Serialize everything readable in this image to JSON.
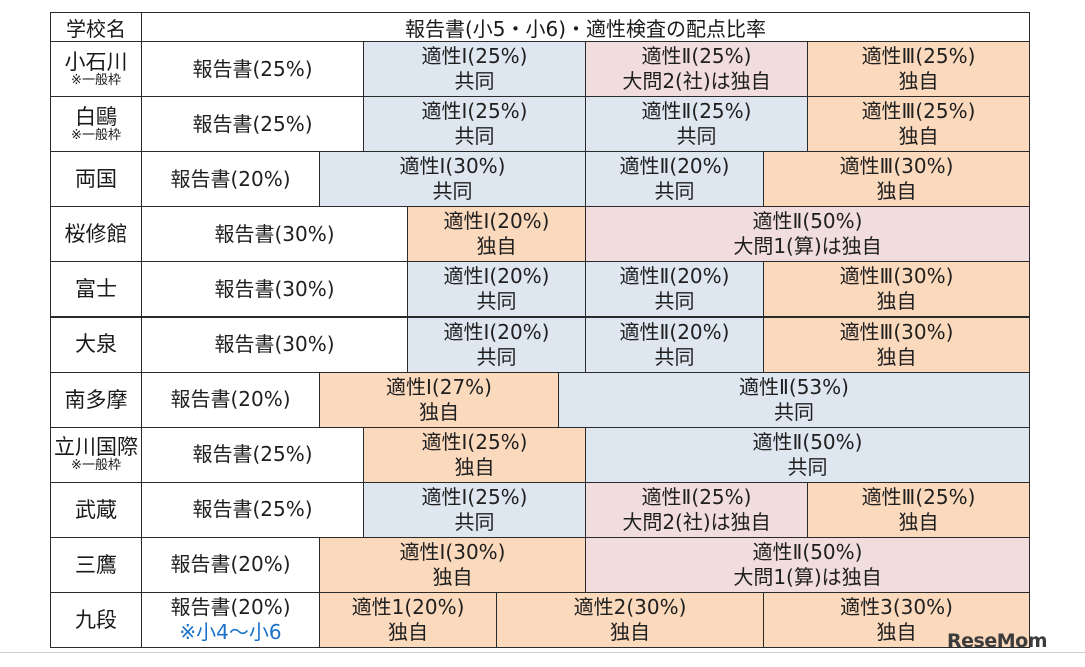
{
  "header": {
    "school_col": "学校名",
    "ratio_col": "報告書(小5・小6)・適性検査の配点比率"
  },
  "palette": {
    "blue": "#dee6f0",
    "orange": "#fbd9bd",
    "pink": "#f1dcde",
    "note_blue": "#1a73c9"
  },
  "rows": [
    {
      "name": "小石川",
      "note": "※一般枠",
      "segments": [
        {
          "pct": 25,
          "l1": "報告書(25%)",
          "l2": "",
          "color": "report"
        },
        {
          "pct": 25,
          "l1": "適性Ⅰ(25%)",
          "l2": "共同",
          "color": "blue"
        },
        {
          "pct": 25,
          "l1": "適性Ⅱ(25%)",
          "l2": "大問2(社)は独自",
          "color": "pink"
        },
        {
          "pct": 25,
          "l1": "適性Ⅲ(25%)",
          "l2": "独自",
          "color": "orange"
        }
      ]
    },
    {
      "name": "白鷗",
      "note": "※一般枠",
      "segments": [
        {
          "pct": 25,
          "l1": "報告書(25%)",
          "l2": "",
          "color": "report"
        },
        {
          "pct": 25,
          "l1": "適性Ⅰ(25%)",
          "l2": "共同",
          "color": "blue"
        },
        {
          "pct": 25,
          "l1": "適性Ⅱ(25%)",
          "l2": "共同",
          "color": "blue"
        },
        {
          "pct": 25,
          "l1": "適性Ⅲ(25%)",
          "l2": "独自",
          "color": "orange"
        }
      ]
    },
    {
      "name": "両国",
      "note": "",
      "segments": [
        {
          "pct": 20,
          "l1": "報告書(20%)",
          "l2": "",
          "color": "report"
        },
        {
          "pct": 30,
          "l1": "適性Ⅰ(30%)",
          "l2": "共同",
          "color": "blue"
        },
        {
          "pct": 20,
          "l1": "適性Ⅱ(20%)",
          "l2": "共同",
          "color": "blue"
        },
        {
          "pct": 30,
          "l1": "適性Ⅲ(30%)",
          "l2": "独自",
          "color": "orange"
        }
      ]
    },
    {
      "name": "桜修館",
      "note": "",
      "segments": [
        {
          "pct": 30,
          "l1": "報告書(30%)",
          "l2": "",
          "color": "report"
        },
        {
          "pct": 20,
          "l1": "適性Ⅰ(20%)",
          "l2": "独自",
          "color": "orange"
        },
        {
          "pct": 50,
          "l1": "適性Ⅱ(50%)",
          "l2": "大問1(算)は独自",
          "color": "pink"
        }
      ]
    },
    {
      "name": "富士",
      "note": "",
      "segments": [
        {
          "pct": 30,
          "l1": "報告書(30%)",
          "l2": "",
          "color": "report"
        },
        {
          "pct": 20,
          "l1": "適性Ⅰ(20%)",
          "l2": "共同",
          "color": "blue"
        },
        {
          "pct": 20,
          "l1": "適性Ⅱ(20%)",
          "l2": "共同",
          "color": "blue"
        },
        {
          "pct": 30,
          "l1": "適性Ⅲ(30%)",
          "l2": "独自",
          "color": "orange"
        }
      ]
    },
    {
      "name": "大泉",
      "note": "",
      "segments": [
        {
          "pct": 30,
          "l1": "報告書(30%)",
          "l2": "",
          "color": "report"
        },
        {
          "pct": 20,
          "l1": "適性Ⅰ(20%)",
          "l2": "共同",
          "color": "blue"
        },
        {
          "pct": 20,
          "l1": "適性Ⅱ(20%)",
          "l2": "共同",
          "color": "blue"
        },
        {
          "pct": 30,
          "l1": "適性Ⅲ(30%)",
          "l2": "独自",
          "color": "orange"
        }
      ]
    },
    {
      "name": "南多摩",
      "note": "",
      "segments": [
        {
          "pct": 20,
          "l1": "報告書(20%)",
          "l2": "",
          "color": "report"
        },
        {
          "pct": 27,
          "l1": "適性Ⅰ(27%)",
          "l2": "独自",
          "color": "orange"
        },
        {
          "pct": 53,
          "l1": "適性Ⅱ(53%)",
          "l2": "共同",
          "color": "blue"
        }
      ]
    },
    {
      "name": "立川国際",
      "note": "※一般枠",
      "segments": [
        {
          "pct": 25,
          "l1": "報告書(25%)",
          "l2": "",
          "color": "report"
        },
        {
          "pct": 25,
          "l1": "適性Ⅰ(25%)",
          "l2": "独自",
          "color": "orange"
        },
        {
          "pct": 50,
          "l1": "適性Ⅱ(50%)",
          "l2": "共同",
          "color": "blue"
        }
      ]
    },
    {
      "name": "武蔵",
      "note": "",
      "segments": [
        {
          "pct": 25,
          "l1": "報告書(25%)",
          "l2": "",
          "color": "report"
        },
        {
          "pct": 25,
          "l1": "適性Ⅰ(25%)",
          "l2": "共同",
          "color": "blue"
        },
        {
          "pct": 25,
          "l1": "適性Ⅱ(25%)",
          "l2": "大問2(社)は独自",
          "color": "pink"
        },
        {
          "pct": 25,
          "l1": "適性Ⅲ(25%)",
          "l2": "独自",
          "color": "orange"
        }
      ]
    },
    {
      "name": "三鷹",
      "note": "",
      "segments": [
        {
          "pct": 20,
          "l1": "報告書(20%)",
          "l2": "",
          "color": "report"
        },
        {
          "pct": 30,
          "l1": "適性Ⅰ(30%)",
          "l2": "独自",
          "color": "orange"
        },
        {
          "pct": 50,
          "l1": "適性Ⅱ(50%)",
          "l2": "大問1(算)は独自",
          "color": "pink"
        }
      ]
    },
    {
      "name": "九段",
      "note": "",
      "segments": [
        {
          "pct": 20,
          "l1": "報告書(20%)",
          "l2": "※小4～小6",
          "color": "report"
        },
        {
          "pct": 20,
          "l1": "適性1(20%)",
          "l2": "独自",
          "color": "orange"
        },
        {
          "pct": 30,
          "l1": "適性2(30%)",
          "l2": "独自",
          "color": "orange"
        },
        {
          "pct": 30,
          "l1": "適性3(30%)",
          "l2": "独自",
          "color": "orange"
        }
      ]
    }
  ],
  "brand": "ReseMom"
}
